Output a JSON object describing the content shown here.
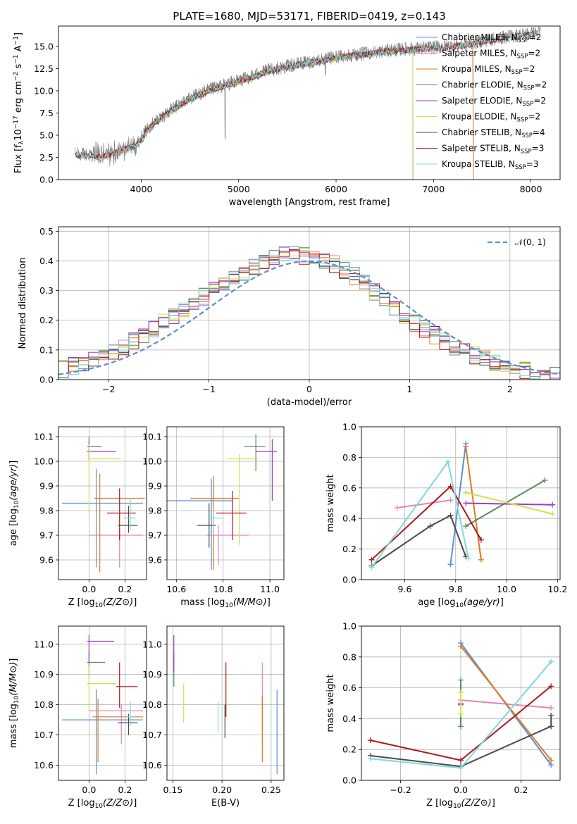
{
  "colors": {
    "Chabrier MILES": "#5a8fd8",
    "Salpeter MILES": "#e584b6",
    "Kroupa MILES": "#e07a1f",
    "Chabrier ELODIE": "#5a8a5f",
    "Salpeter ELODIE": "#9b3fc0",
    "Kroupa ELODIE": "#cfe24d",
    "Chabrier STELIB": "#4a4a4a",
    "Salpeter STELIB": "#b01818",
    "Kroupa STELIB": "#7fd9d9"
  },
  "chart_data": [
    {
      "type": "line",
      "title": "PLATE=1680, MJD=53171, FIBERID=0419, z=0.143",
      "xlabel": "wavelength [Angstrom, rest frame]",
      "ylabel_parts": {
        "main": "Flux [f",
        "sub": "λ",
        "mid": "10",
        "sup1": "−17",
        "mid2": " erg cm",
        "sup2": "−2",
        "mid3": " s",
        "sup3": "−1",
        "mid4": " A",
        "sup4": "−1",
        "end": "]"
      },
      "xlim": [
        3150,
        8300
      ],
      "ylim": [
        0,
        17.3
      ],
      "xticks": [
        4000,
        5000,
        6000,
        7000,
        8000
      ],
      "yticks": [
        0.0,
        2.5,
        5.0,
        7.5,
        10.0,
        12.5,
        15.0
      ],
      "spectrum_anchors": {
        "x": [
          3320,
          3450,
          3600,
          3800,
          3950,
          4100,
          4300,
          4500,
          4700,
          4900,
          5100,
          5300,
          5500,
          5700,
          5900,
          6100,
          6300,
          6500,
          6700,
          6900,
          7100,
          7300,
          7500,
          7700,
          7900,
          8100
        ],
        "y": [
          2.9,
          2.8,
          2.7,
          3.4,
          4.0,
          6.2,
          7.8,
          9.2,
          10.1,
          10.8,
          11.5,
          12.3,
          12.8,
          13.2,
          13.6,
          14.0,
          14.2,
          14.5,
          14.7,
          14.8,
          15.0,
          15.2,
          15.6,
          16.0,
          16.3,
          16.6
        ]
      },
      "model_ranges": [
        {
          "name": "Chabrier MILES",
          "nssp": "2",
          "xmin": 3540,
          "xmax": 7410
        },
        {
          "name": "Salpeter MILES",
          "nssp": "2",
          "xmin": 3540,
          "xmax": 7410
        },
        {
          "name": "Kroupa MILES",
          "nssp": "2",
          "xmin": 3540,
          "xmax": 7410
        },
        {
          "name": "Chabrier ELODIE",
          "nssp": "2",
          "xmin": 3900,
          "xmax": 6790
        },
        {
          "name": "Salpeter ELODIE",
          "nssp": "2",
          "xmin": 3900,
          "xmax": 6790
        },
        {
          "name": "Kroupa ELODIE",
          "nssp": "2",
          "xmin": 3900,
          "xmax": 6790
        },
        {
          "name": "Chabrier STELIB",
          "nssp": "4",
          "xmin": 3320,
          "xmax": 8040
        },
        {
          "name": "Salpeter STELIB",
          "nssp": "3",
          "xmin": 3320,
          "xmax": 8040
        },
        {
          "name": "Kroupa STELIB",
          "nssp": "3",
          "xmin": 3320,
          "xmax": 8040
        }
      ],
      "legend_position": "upper right"
    },
    {
      "type": "histogram",
      "xlabel": "(data-model)/error",
      "ylabel": "Normed distribution",
      "xlim": [
        -2.5,
        2.5
      ],
      "ylim": [
        0,
        0.515
      ],
      "xticks": [
        -2,
        -1,
        0,
        1,
        2
      ],
      "yticks": [
        0.0,
        0.1,
        0.2,
        0.3,
        0.4,
        0.5
      ],
      "bin_width": 0.1,
      "reference_curve": {
        "name": "𝒩(0, 1)",
        "mean": 0,
        "sigma": 1,
        "style": "dashed"
      },
      "envelope": {
        "x": [
          -2.5,
          -2.0,
          -1.5,
          -1.0,
          -0.5,
          -0.2,
          0.0,
          0.2,
          0.5,
          1.0,
          1.5,
          2.0,
          2.5
        ],
        "y": [
          0.03,
          0.08,
          0.18,
          0.29,
          0.39,
          0.43,
          0.41,
          0.4,
          0.34,
          0.2,
          0.1,
          0.04,
          0.01
        ]
      },
      "legend_position": "upper right",
      "grid": true
    },
    {
      "type": "scatter_errorbar",
      "xlabel": "Z [log10(Z/Z⊙)]",
      "ylabel": "age [log10(age/yr)]",
      "xlim": [
        -0.17,
        0.32
      ],
      "ylim": [
        9.52,
        10.14
      ],
      "xticks": [
        0.0,
        0.2
      ],
      "yticks": [
        9.6,
        9.7,
        9.8,
        9.9,
        10.0,
        10.1
      ],
      "points": [
        {
          "name": "Chabrier MILES",
          "x": 0.04,
          "y": 9.83,
          "xerr": [
            0.19,
            0.26
          ],
          "yerr": [
            0.26,
            0.14
          ]
        },
        {
          "name": "Salpeter MILES",
          "x": 0.17,
          "y": 9.7,
          "xerr": [
            0.17,
            0.13
          ],
          "yerr": [
            0.13,
            0.03
          ]
        },
        {
          "name": "Kroupa MILES",
          "x": 0.06,
          "y": 9.85,
          "xerr": [
            0.03,
            0.25
          ],
          "yerr": [
            0.3,
            0.1
          ]
        },
        {
          "name": "Chabrier ELODIE",
          "x": 0.0,
          "y": 10.06,
          "xerr": [
            0.01,
            0.07
          ],
          "yerr": [
            0.06,
            0.04
          ]
        },
        {
          "name": "Salpeter ELODIE",
          "x": 0.0,
          "y": 10.04,
          "xerr": [
            0.01,
            0.15
          ],
          "yerr": [
            0.03,
            0.04
          ]
        },
        {
          "name": "Kroupa ELODIE",
          "x": 0.0,
          "y": 10.01,
          "xerr": [
            0.01,
            0.18
          ],
          "yerr": [
            0.22,
            0.06
          ]
        },
        {
          "name": "Chabrier STELIB",
          "x": 0.22,
          "y": 9.74,
          "xerr": [
            0.06,
            0.05
          ],
          "yerr": [
            0.03,
            0.08
          ]
        },
        {
          "name": "Salpeter STELIB",
          "x": 0.17,
          "y": 9.79,
          "xerr": [
            0.07,
            0.09
          ],
          "yerr": [
            0.11,
            0.1
          ]
        },
        {
          "name": "Kroupa STELIB",
          "x": 0.23,
          "y": 9.77,
          "xerr": [
            0.04,
            0.03
          ],
          "yerr": [
            0.05,
            0.08
          ]
        }
      ],
      "grid": true
    },
    {
      "type": "scatter_errorbar",
      "xlabel": "mass [log10(M/M⊙)]",
      "ylabel": "",
      "xlim": [
        10.56,
        11.06
      ],
      "ylim": [
        9.52,
        10.14
      ],
      "xticks": [
        10.6,
        10.8,
        11.0
      ],
      "yticks": [
        9.6,
        9.7,
        9.8,
        9.9,
        10.0,
        10.1
      ],
      "points": [
        {
          "name": "Chabrier MILES",
          "x": 10.75,
          "y": 9.84,
          "xerr": [
            0.19,
            0.09
          ],
          "yerr": [
            0.28,
            0.09
          ]
        },
        {
          "name": "Salpeter MILES",
          "x": 10.78,
          "y": 9.7,
          "xerr": [
            0.05,
            0.13
          ],
          "yerr": [
            0.12,
            0.04
          ]
        },
        {
          "name": "Kroupa MILES",
          "x": 10.76,
          "y": 9.85,
          "xerr": [
            0.1,
            0.11
          ],
          "yerr": [
            0.29,
            0.09
          ]
        },
        {
          "name": "Chabrier ELODIE",
          "x": 10.94,
          "y": 10.06,
          "xerr": [
            0.05,
            0.04
          ],
          "yerr": [
            0.1,
            0.05
          ]
        },
        {
          "name": "Salpeter ELODIE",
          "x": 11.01,
          "y": 10.04,
          "xerr": [
            0.07,
            0.02
          ],
          "yerr": [
            0.2,
            0.05
          ]
        },
        {
          "name": "Kroupa ELODIE",
          "x": 10.87,
          "y": 10.01,
          "xerr": [
            0.05,
            0.08
          ],
          "yerr": [
            0.35,
            0.02
          ]
        },
        {
          "name": "Chabrier STELIB",
          "x": 10.74,
          "y": 9.74,
          "xerr": [
            0.05,
            0.03
          ],
          "yerr": [
            0.09,
            0.09
          ]
        },
        {
          "name": "Salpeter STELIB",
          "x": 10.84,
          "y": 9.79,
          "xerr": [
            0.07,
            0.06
          ],
          "yerr": [
            0.11,
            0.09
          ]
        },
        {
          "name": "Kroupa STELIB",
          "x": 10.76,
          "y": 9.77,
          "xerr": [
            0.02,
            0.04
          ],
          "yerr": [
            0.07,
            0.03
          ]
        }
      ],
      "grid": true
    },
    {
      "type": "line",
      "xlabel": "age [log10(age/yr)]",
      "ylabel": "mass weight",
      "xlim": [
        9.43,
        10.21
      ],
      "ylim": [
        0.0,
        1.0
      ],
      "xticks": [
        9.6,
        9.8,
        10.0,
        10.2
      ],
      "yticks": [
        0.0,
        0.2,
        0.4,
        0.6,
        0.8,
        1.0
      ],
      "series": [
        {
          "name": "Chabrier MILES",
          "x": [
            9.78,
            9.84
          ],
          "y": [
            0.1,
            0.89
          ]
        },
        {
          "name": "Salpeter MILES",
          "x": [
            9.57,
            9.78
          ],
          "y": [
            0.47,
            0.52
          ]
        },
        {
          "name": "Kroupa MILES",
          "x": [
            9.84,
            9.9
          ],
          "y": [
            0.87,
            0.13
          ]
        },
        {
          "name": "Chabrier ELODIE",
          "x": [
            9.84,
            10.15
          ],
          "y": [
            0.35,
            0.65
          ]
        },
        {
          "name": "Salpeter ELODIE",
          "x": [
            9.84,
            10.18
          ],
          "y": [
            0.5,
            0.49
          ]
        },
        {
          "name": "Kroupa ELODIE",
          "x": [
            9.84,
            10.18
          ],
          "y": [
            0.57,
            0.43
          ]
        },
        {
          "name": "Chabrier STELIB",
          "x": [
            9.47,
            9.7,
            9.78,
            9.84
          ],
          "y": [
            0.09,
            0.35,
            0.42,
            0.15
          ]
        },
        {
          "name": "Salpeter STELIB",
          "x": [
            9.47,
            9.78,
            9.9
          ],
          "y": [
            0.13,
            0.61,
            0.26
          ]
        },
        {
          "name": "Kroupa STELIB",
          "x": [
            9.47,
            9.77,
            9.85
          ],
          "y": [
            0.08,
            0.77,
            0.14
          ]
        }
      ],
      "grid": true
    },
    {
      "type": "scatter_errorbar",
      "xlabel": "Z [log10(Z/Z⊙)]",
      "ylabel": "mass [log10(M/M⊙)]",
      "xlim": [
        -0.17,
        0.32
      ],
      "ylim": [
        10.55,
        11.06
      ],
      "xticks": [
        0.0,
        0.2
      ],
      "yticks": [
        10.6,
        10.7,
        10.8,
        10.9,
        11.0
      ],
      "points": [
        {
          "name": "Chabrier MILES",
          "x": 0.04,
          "y": 10.75,
          "xerr": [
            0.19,
            0.26
          ],
          "yerr": [
            0.18,
            0.1
          ]
        },
        {
          "name": "Salpeter MILES",
          "x": 0.18,
          "y": 10.78,
          "xerr": [
            0.18,
            0.12
          ],
          "yerr": [
            0.11,
            0.02
          ]
        },
        {
          "name": "Kroupa MILES",
          "x": 0.05,
          "y": 10.76,
          "xerr": [
            0.03,
            0.25
          ],
          "yerr": [
            0.15,
            0.06
          ]
        },
        {
          "name": "Chabrier ELODIE",
          "x": 0.0,
          "y": 10.94,
          "xerr": [
            0.01,
            0.09
          ],
          "yerr": [
            0.05,
            0.04
          ]
        },
        {
          "name": "Salpeter ELODIE",
          "x": 0.0,
          "y": 11.01,
          "xerr": [
            0.01,
            0.14
          ],
          "yerr": [
            0.07,
            0.02
          ]
        },
        {
          "name": "Kroupa ELODIE",
          "x": 0.0,
          "y": 10.87,
          "xerr": [
            0.01,
            0.15
          ],
          "yerr": [
            0.09,
            0.06
          ]
        },
        {
          "name": "Chabrier STELIB",
          "x": 0.22,
          "y": 10.74,
          "xerr": [
            0.06,
            0.05
          ],
          "yerr": [
            0.04,
            0.03
          ]
        },
        {
          "name": "Salpeter STELIB",
          "x": 0.17,
          "y": 10.86,
          "xerr": [
            0.02,
            0.1
          ],
          "yerr": [
            0.07,
            0.08
          ]
        },
        {
          "name": "Kroupa STELIB",
          "x": 0.23,
          "y": 10.76,
          "xerr": [
            0.02,
            0.02
          ],
          "yerr": [
            0.03,
            0.05
          ]
        }
      ],
      "grid": true
    },
    {
      "type": "errorbar",
      "xlabel": "E(B-V)",
      "ylabel": "",
      "xlim": [
        0.144,
        0.263
      ],
      "ylim": [
        10.55,
        11.06
      ],
      "xticks": [
        0.15,
        0.2,
        0.25
      ],
      "yticks": [
        10.6,
        10.7,
        10.8,
        10.9,
        11.0
      ],
      "points": [
        {
          "name": "Chabrier MILES",
          "x": 0.256,
          "y": 10.75,
          "yerr": [
            0.18,
            0.1
          ]
        },
        {
          "name": "Salpeter MILES",
          "x": 0.241,
          "y": 10.78,
          "yerr": [
            0.1,
            0.16
          ]
        },
        {
          "name": "Kroupa MILES",
          "x": 0.241,
          "y": 10.76,
          "yerr": [
            0.15,
            0.07
          ]
        },
        {
          "name": "Chabrier ELODIE",
          "x": 0.151,
          "y": 10.94,
          "yerr": [
            0.08,
            0.03
          ]
        },
        {
          "name": "Salpeter ELODIE",
          "x": 0.151,
          "y": 11.01,
          "yerr": [
            0.1,
            0.02
          ]
        },
        {
          "name": "Kroupa ELODIE",
          "x": 0.161,
          "y": 10.87,
          "yerr": [
            0.13,
            0.0
          ]
        },
        {
          "name": "Chabrier STELIB",
          "x": 0.203,
          "y": 10.74,
          "yerr": [
            0.05,
            0.06
          ]
        },
        {
          "name": "Salpeter STELIB",
          "x": 0.204,
          "y": 10.86,
          "yerr": [
            0.1,
            0.08
          ]
        },
        {
          "name": "Kroupa STELIB",
          "x": 0.196,
          "y": 10.76,
          "yerr": [
            0.05,
            0.05
          ]
        }
      ],
      "grid": true
    },
    {
      "type": "line",
      "xlabel": "Z [log10(Z/Z⊙)]",
      "ylabel": "mass weight",
      "xlim": [
        -0.33,
        0.33
      ],
      "ylim": [
        0.0,
        1.0
      ],
      "xticks": [
        -0.2,
        0.0,
        0.2
      ],
      "yticks": [
        0.0,
        0.2,
        0.4,
        0.6,
        0.8,
        1.0
      ],
      "series": [
        {
          "name": "Chabrier MILES",
          "x": [
            0.0,
            0.3
          ],
          "y": [
            0.89,
            0.1
          ]
        },
        {
          "name": "Salpeter MILES",
          "x": [
            0.0,
            0.3
          ],
          "y": [
            0.52,
            0.47
          ]
        },
        {
          "name": "Kroupa MILES",
          "x": [
            0.0,
            0.3
          ],
          "y": [
            0.87,
            0.13
          ]
        },
        {
          "name": "Chabrier ELODIE",
          "x": [
            0.0,
            0.0
          ],
          "y": [
            0.35,
            0.65
          ]
        },
        {
          "name": "Salpeter ELODIE",
          "x": [
            0.0,
            0.0
          ],
          "y": [
            0.5,
            0.49
          ]
        },
        {
          "name": "Kroupa ELODIE",
          "x": [
            0.0,
            0.0
          ],
          "y": [
            0.43,
            0.57
          ]
        },
        {
          "name": "Chabrier STELIB",
          "x": [
            -0.3,
            0.0,
            0.3,
            0.3
          ],
          "y": [
            0.16,
            0.09,
            0.35,
            0.42
          ]
        },
        {
          "name": "Salpeter STELIB",
          "x": [
            -0.3,
            0.0,
            0.3
          ],
          "y": [
            0.26,
            0.13,
            0.61
          ]
        },
        {
          "name": "Kroupa STELIB",
          "x": [
            -0.3,
            0.0,
            0.3
          ],
          "y": [
            0.14,
            0.08,
            0.77
          ]
        }
      ],
      "grid": true
    }
  ]
}
